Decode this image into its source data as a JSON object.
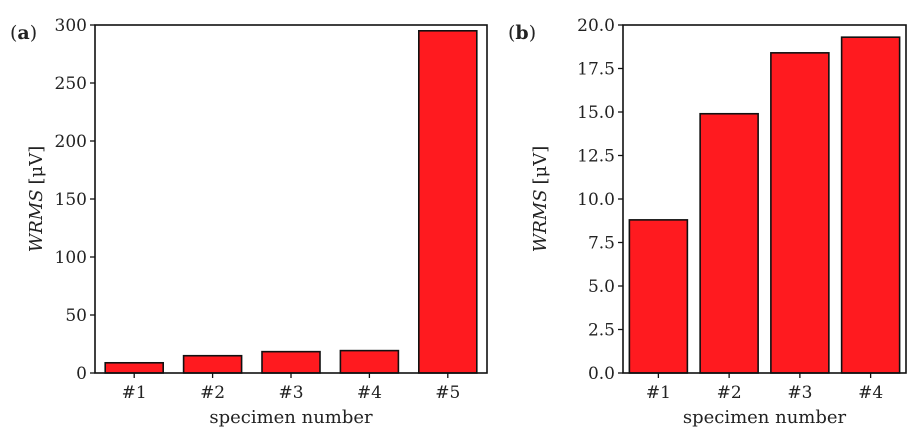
{
  "colors": {
    "bar_fill": "#ff1a1f",
    "bar_edge": "#111111",
    "axis": "#111111"
  },
  "chart_data": [
    {
      "type": "bar",
      "panel_label": "a",
      "categories": [
        "#1",
        "#2",
        "#3",
        "#4",
        "#5"
      ],
      "values": [
        8.8,
        14.9,
        18.4,
        19.3,
        295
      ],
      "xlabel": "specimen number",
      "ylabel_italic": "WRMS",
      "ylabel_unit": "[μV]",
      "ylim": [
        0,
        300
      ],
      "yticks": [
        0,
        50,
        100,
        150,
        200,
        250,
        300
      ],
      "ytick_labels": [
        "0",
        "50",
        "100",
        "150",
        "200",
        "250",
        "300"
      ],
      "grid": false,
      "legend": "none"
    },
    {
      "type": "bar",
      "panel_label": "b",
      "categories": [
        "#1",
        "#2",
        "#3",
        "#4"
      ],
      "values": [
        8.8,
        14.9,
        18.4,
        19.3
      ],
      "xlabel": "specimen number",
      "ylabel_italic": "WRMS",
      "ylabel_unit": "[μV]",
      "ylim": [
        0,
        20
      ],
      "yticks": [
        0,
        2.5,
        5,
        7.5,
        10,
        12.5,
        15,
        17.5,
        20
      ],
      "ytick_labels": [
        "0.0",
        "2.5",
        "5.0",
        "7.5",
        "10.0",
        "12.5",
        "15.0",
        "17.5",
        "20.0"
      ],
      "grid": false,
      "legend": "none"
    }
  ]
}
